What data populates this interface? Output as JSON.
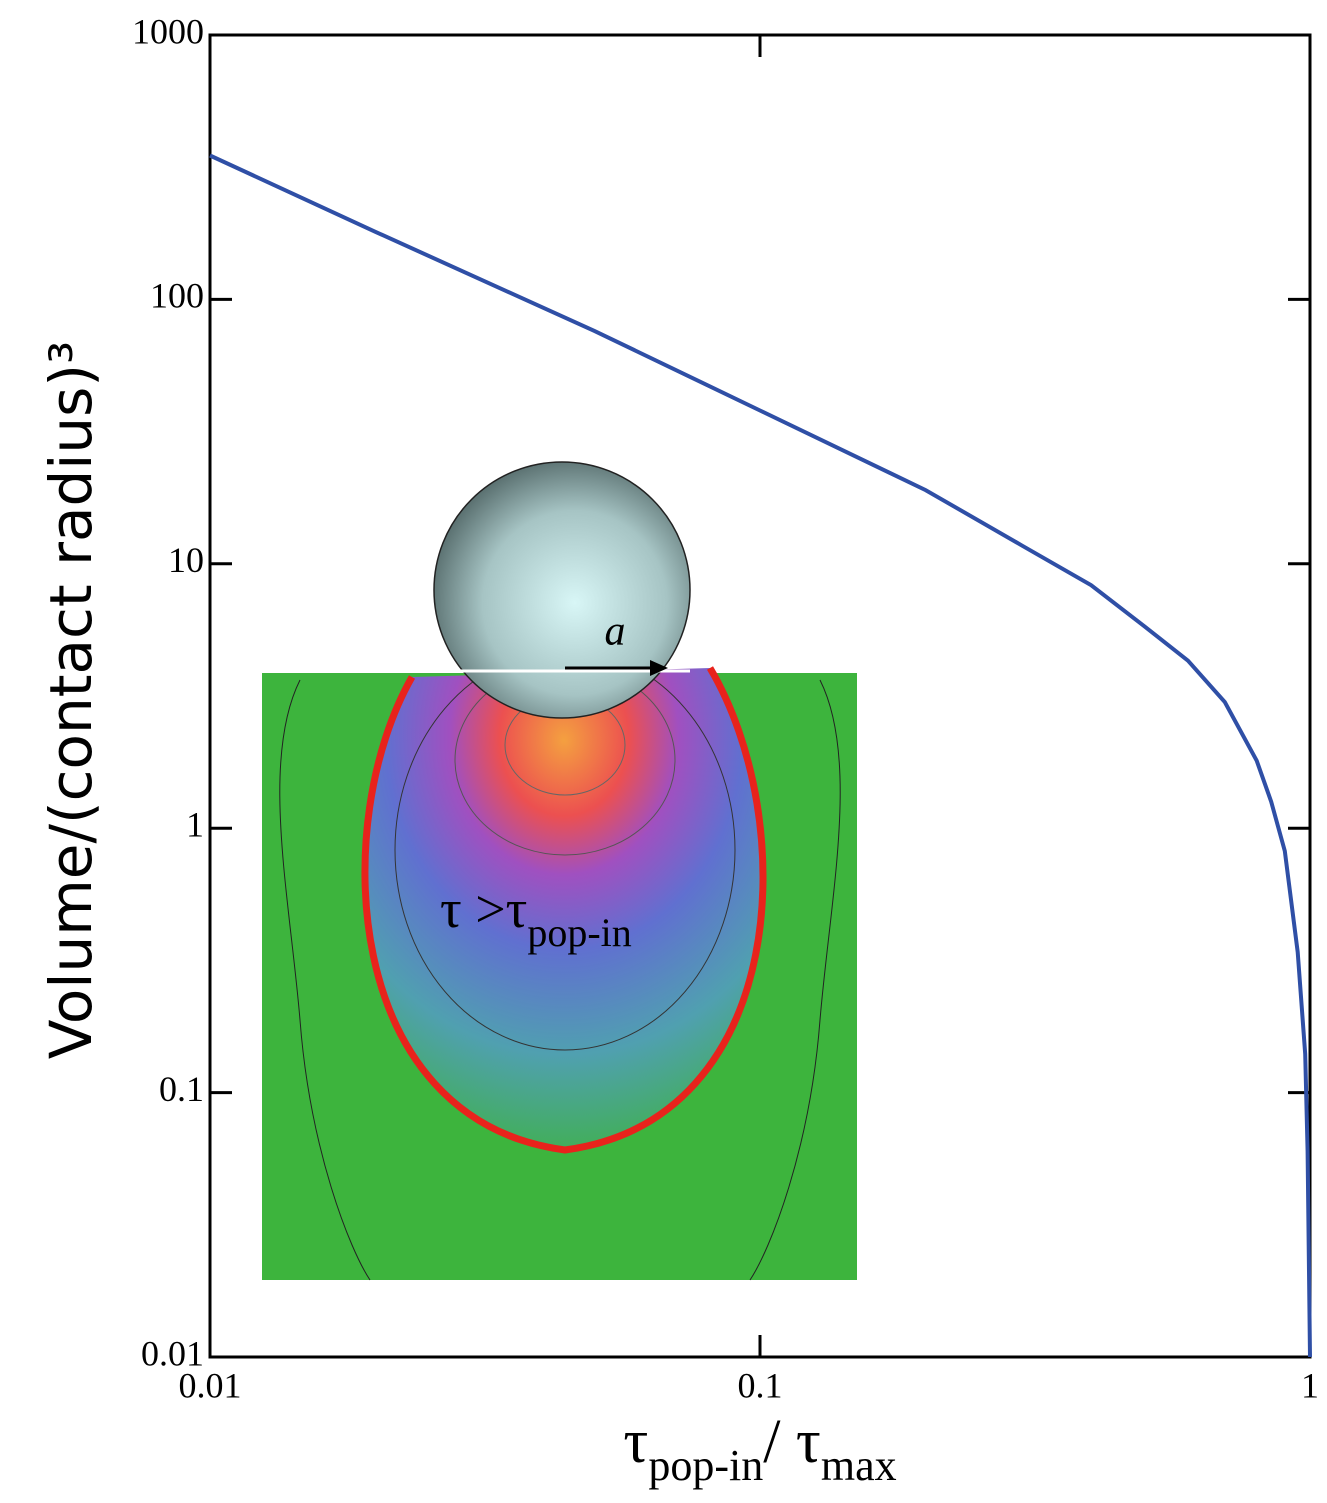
{
  "chart_data": {
    "type": "line",
    "ylabel": "Volume/(contact radius)³",
    "xlabel": [
      "τ",
      "pop-in",
      "/  τ",
      "max"
    ],
    "annotations": {
      "arrow_label": "a",
      "region_label": [
        "τ >τ",
        "pop-in"
      ]
    },
    "x_log": true,
    "y_log": true,
    "xlim": [
      0.01,
      1
    ],
    "ylim": [
      0.01,
      1000
    ],
    "xticks": [
      0.01,
      0.1,
      1
    ],
    "yticks": [
      0.01,
      0.1,
      1,
      10,
      100,
      1000
    ],
    "series": [
      {
        "color": "#2f4fa6",
        "x": [
          0.01,
          0.02,
          0.05,
          0.1,
          0.2,
          0.3,
          0.4,
          0.5,
          0.6,
          0.7,
          0.8,
          0.85,
          0.9,
          0.95,
          0.98,
          0.99,
          1
        ],
        "values": [
          350,
          180,
          76,
          38,
          19,
          11.7,
          8.3,
          5.8,
          4.3,
          3.0,
          1.8,
          1.26,
          0.82,
          0.34,
          0.14,
          0.06,
          0.01
        ]
      }
    ]
  }
}
